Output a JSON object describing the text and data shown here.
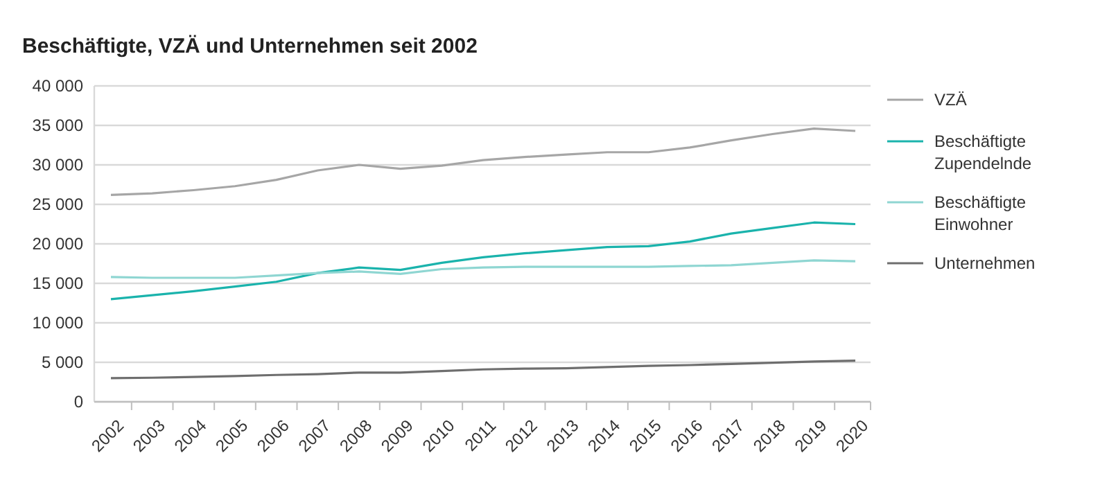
{
  "chart_data": {
    "type": "line",
    "title": "Beschäftigte, VZÄ und Unternehmen seit 2002",
    "categories": [
      "2002",
      "2003",
      "2004",
      "2005",
      "2006",
      "2007",
      "2008",
      "2009",
      "2010",
      "2011",
      "2012",
      "2013",
      "2014",
      "2015",
      "2016",
      "2017",
      "2018",
      "2019",
      "2020"
    ],
    "series": [
      {
        "name": "VZÄ",
        "color": "#a6a6a6",
        "values": [
          26200,
          26400,
          26800,
          27300,
          28100,
          29300,
          30000,
          29500,
          29900,
          30600,
          31000,
          31300,
          31600,
          31600,
          32200,
          33100,
          33900,
          34600,
          34300
        ]
      },
      {
        "name": "Beschäftigte Zupendelnde",
        "color": "#1ab3ac",
        "values": [
          13000,
          13500,
          14000,
          14600,
          15200,
          16300,
          17000,
          16700,
          17600,
          18300,
          18800,
          19200,
          19600,
          19700,
          20300,
          21300,
          22000,
          22700,
          22500
        ]
      },
      {
        "name": "Beschäftigte Einwohner",
        "color": "#8fd6d2",
        "values": [
          15800,
          15700,
          15700,
          15700,
          16000,
          16300,
          16500,
          16200,
          16800,
          17000,
          17100,
          17100,
          17100,
          17100,
          17200,
          17300,
          17600,
          17900,
          17800
        ]
      },
      {
        "name": "Unternehmen",
        "color": "#6e6e6e",
        "values": [
          3000,
          3050,
          3150,
          3250,
          3400,
          3500,
          3700,
          3700,
          3900,
          4100,
          4200,
          4250,
          4400,
          4550,
          4650,
          4800,
          4950,
          5100,
          5200
        ]
      }
    ],
    "ylim": [
      0,
      40000
    ],
    "yticks": [
      0,
      {
        "value": 5000,
        "label": "5 000"
      },
      {
        "value": 10000,
        "label": "10 000"
      },
      {
        "value": 15000,
        "label": "15 000"
      },
      {
        "value": 20000,
        "label": "20 000"
      },
      {
        "value": 25000,
        "label": "25 000"
      },
      {
        "value": 30000,
        "label": "30 000"
      },
      {
        "value": 35000,
        "label": "35 000"
      },
      {
        "value": 40000,
        "label": "40 000"
      }
    ],
    "grid": "y",
    "legend": "right",
    "marker": "none",
    "line_style": "solid"
  }
}
